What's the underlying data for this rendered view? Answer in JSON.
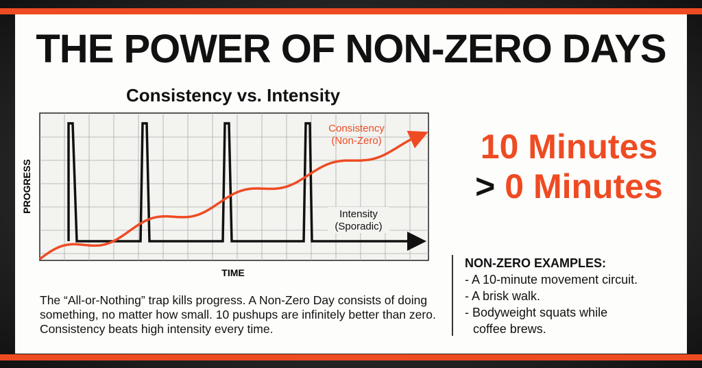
{
  "header": {
    "title": "THE POWER OF NON-ZERO DAYS"
  },
  "chart": {
    "title": "Consistency vs. Intensity",
    "y_label": "PROGRESS",
    "x_label": "TIME",
    "consistency_label": [
      "Consistency",
      "(Non-Zero)"
    ],
    "intensity_label": [
      "Intensity",
      "(Sporadic)"
    ]
  },
  "body": "The “All-or-Nothing” trap kills progress. A Non-Zero Day consists of doing something, no matter how small. 10 pushups are infinitely better than zero. Consistency beats high intensity every time.",
  "headline": {
    "line1": "10 Minutes",
    "line2_symbol": ">",
    "line2": "0 Minutes"
  },
  "examples": {
    "title": "NON-ZERO EXAMPLES:",
    "items": [
      "- A 10-minute movement circuit.",
      "- A brisk walk.",
      "- Bodyweight squats while",
      "coffee brews."
    ]
  }
}
